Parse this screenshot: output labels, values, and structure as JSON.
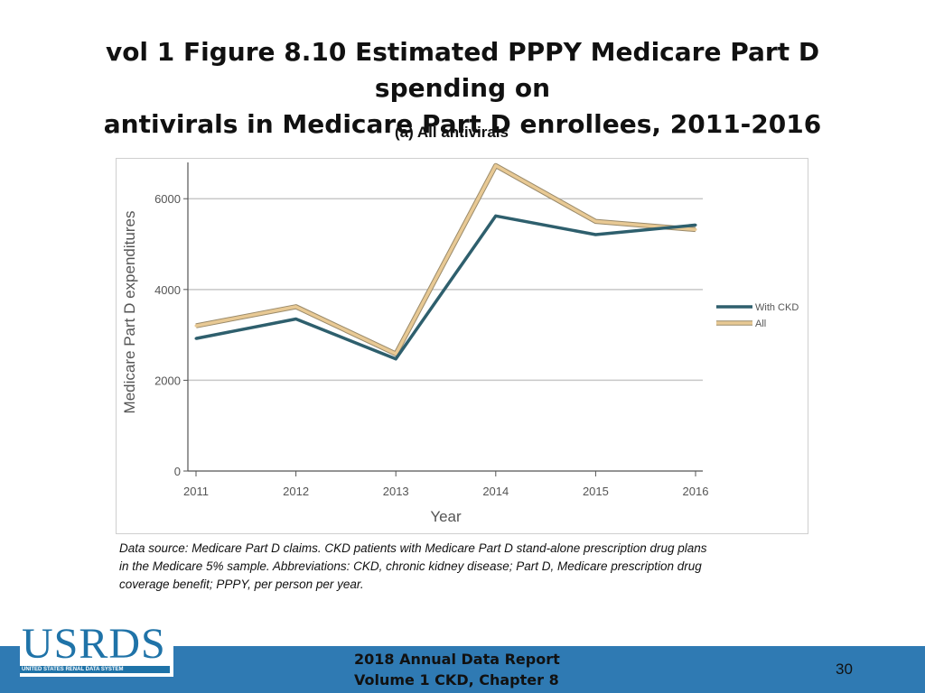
{
  "slide": {
    "title_lines": [
      "vol 1 Figure 8.10 Estimated PPPY Medicare Part D spending on",
      "antivirals in Medicare Part D enrollees, 2011-2016"
    ],
    "subtitle": "(a) All antivirals",
    "source_lines": [
      "Data source: Medicare Part D claims. CKD patients with Medicare Part D stand-alone prescription drug plans",
      "in the Medicare 5% sample. Abbreviations: CKD, chronic kidney disease; Part D, Medicare prescription drug",
      "coverage benefit; PPPY, per person per year."
    ],
    "footer_lines": [
      "2018 Annual Data Report",
      "Volume 1 CKD, Chapter 8"
    ],
    "page_number": "30",
    "logo": {
      "text": "USRDS",
      "subtext": "UNITED STATES RENAL DATA SYSTEM"
    }
  },
  "chart_data": {
    "type": "line",
    "title": "",
    "xlabel": "Year",
    "ylabel": "Medicare Part D expenditures",
    "x": [
      2011,
      2012,
      2013,
      2014,
      2015,
      2016
    ],
    "x_tick_labels": [
      "2011",
      "2012",
      "2013",
      "2014",
      "2015",
      "2016"
    ],
    "y_ticks": [
      0,
      2000,
      4000,
      6000
    ],
    "y_tick_labels": [
      "0",
      "2000",
      "4000",
      "6000"
    ],
    "ylim": [
      0,
      6800
    ],
    "grid": true,
    "legend_position": "right",
    "series": [
      {
        "name": "With CKD",
        "color": "#2e5f6d",
        "values": [
          2920,
          3350,
          2470,
          5620,
          5210,
          5420
        ]
      },
      {
        "name": "All",
        "color": "#e8c994",
        "values": [
          3200,
          3620,
          2580,
          6730,
          5500,
          5320
        ]
      }
    ]
  }
}
